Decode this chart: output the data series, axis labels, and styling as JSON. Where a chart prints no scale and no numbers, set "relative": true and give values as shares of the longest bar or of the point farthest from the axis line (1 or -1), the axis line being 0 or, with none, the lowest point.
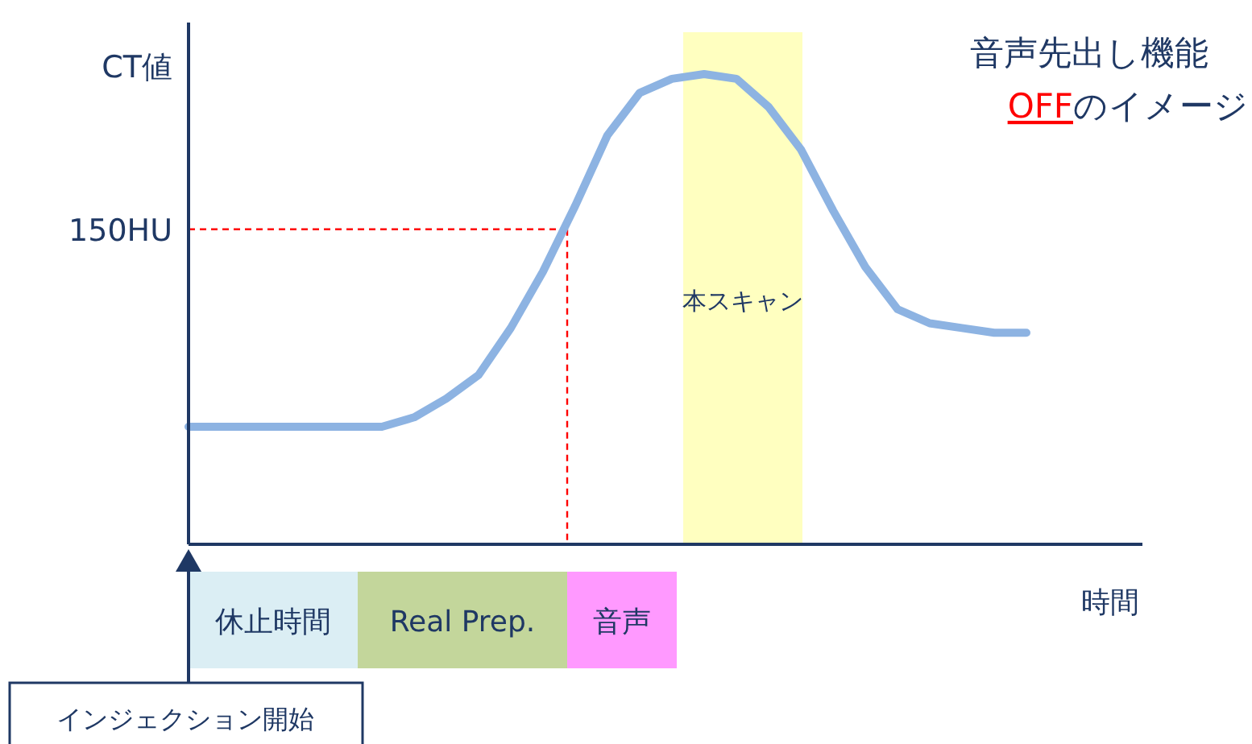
{
  "chart_data": {
    "type": "line",
    "relative": true,
    "title": "音声先出し機能",
    "subtitle": "**OFF**のイメージ",
    "ylabel": "CT値",
    "xlabel": "時間",
    "categories": [
      null,
      null,
      null,
      null,
      null,
      null,
      null,
      null,
      null,
      null,
      null,
      null,
      null,
      null,
      null,
      null,
      null,
      null,
      null,
      null,
      null,
      null,
      null,
      null,
      null,
      null,
      null
    ],
    "series": [
      {
        "color": "#8db3e2",
        "values": [
          0.25,
          0.25,
          0.25,
          0.25,
          0.25,
          0.25,
          0.25,
          0.27,
          0.31,
          0.36,
          0.46,
          0.58,
          0.72,
          0.87,
          0.96,
          0.99,
          1.0,
          0.99,
          0.93,
          0.84,
          0.71,
          0.59,
          0.5,
          0.47,
          0.46,
          0.45,
          0.45
        ]
      }
    ],
    "ref_lines": [
      {
        "axis": "y",
        "value": 0.67,
        "label": "150HU",
        "color": "#ff0000",
        "line_style": "dashed"
      }
    ],
    "annotations": [
      "本スキャン",
      "休止時間",
      "Real Prep.",
      "音声",
      "インジェクション開始"
    ]
  }
}
